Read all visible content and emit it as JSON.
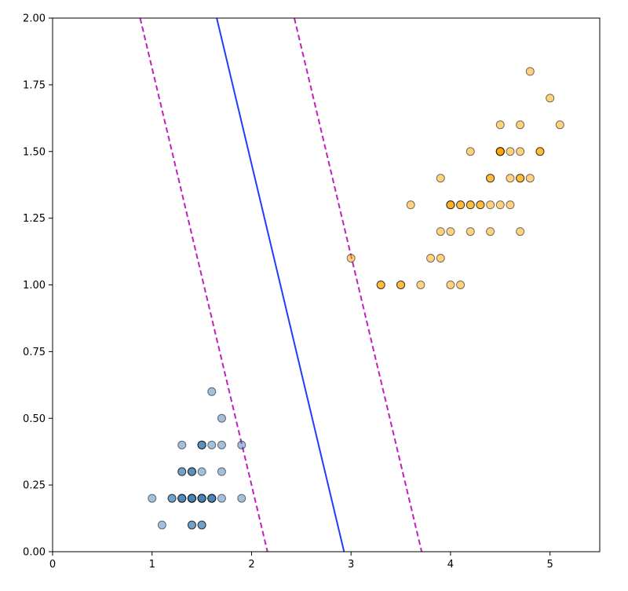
{
  "chart_data": {
    "type": "scatter",
    "title": "",
    "xlabel": "",
    "ylabel": "",
    "xlim": [
      0,
      5.5
    ],
    "ylim": [
      0,
      2.0
    ],
    "grid": false,
    "xticks": [
      "0",
      "1",
      "2",
      "3",
      "4",
      "5"
    ],
    "xtick_values": [
      0,
      1,
      2,
      3,
      4,
      5
    ],
    "yticks": [
      "0.00",
      "0.25",
      "0.50",
      "0.75",
      "1.00",
      "1.25",
      "1.50",
      "1.75",
      "2.00"
    ],
    "ytick_values": [
      0,
      0.25,
      0.5,
      0.75,
      1.0,
      1.25,
      1.5,
      1.75,
      2.0
    ],
    "series": [
      {
        "color": "#4682b4",
        "points": [
          [
            1.4,
            0.2
          ],
          [
            1.4,
            0.2
          ],
          [
            1.3,
            0.2
          ],
          [
            1.5,
            0.2
          ],
          [
            1.4,
            0.2
          ],
          [
            1.7,
            0.4
          ],
          [
            1.4,
            0.3
          ],
          [
            1.5,
            0.2
          ],
          [
            1.4,
            0.2
          ],
          [
            1.5,
            0.1
          ],
          [
            1.5,
            0.2
          ],
          [
            1.6,
            0.2
          ],
          [
            1.4,
            0.1
          ],
          [
            1.1,
            0.1
          ],
          [
            1.2,
            0.2
          ],
          [
            1.5,
            0.4
          ],
          [
            1.3,
            0.4
          ],
          [
            1.4,
            0.3
          ],
          [
            1.7,
            0.3
          ],
          [
            1.5,
            0.3
          ],
          [
            1.7,
            0.2
          ],
          [
            1.5,
            0.4
          ],
          [
            1.0,
            0.2
          ],
          [
            1.7,
            0.5
          ],
          [
            1.9,
            0.2
          ],
          [
            1.6,
            0.2
          ],
          [
            1.6,
            0.4
          ],
          [
            1.5,
            0.2
          ],
          [
            1.4,
            0.2
          ],
          [
            1.6,
            0.2
          ],
          [
            1.6,
            0.2
          ],
          [
            1.5,
            0.4
          ],
          [
            1.5,
            0.1
          ],
          [
            1.4,
            0.2
          ],
          [
            1.5,
            0.2
          ],
          [
            1.2,
            0.2
          ],
          [
            1.3,
            0.2
          ],
          [
            1.4,
            0.1
          ],
          [
            1.3,
            0.2
          ],
          [
            1.5,
            0.2
          ],
          [
            1.3,
            0.3
          ],
          [
            1.3,
            0.3
          ],
          [
            1.3,
            0.2
          ],
          [
            1.6,
            0.6
          ],
          [
            1.9,
            0.4
          ],
          [
            1.4,
            0.3
          ],
          [
            1.6,
            0.2
          ],
          [
            1.4,
            0.2
          ],
          [
            1.5,
            0.2
          ],
          [
            1.4,
            0.2
          ]
        ]
      },
      {
        "color": "#ffa500",
        "points": [
          [
            4.7,
            1.4
          ],
          [
            4.5,
            1.5
          ],
          [
            4.9,
            1.5
          ],
          [
            4.0,
            1.3
          ],
          [
            4.6,
            1.5
          ],
          [
            4.5,
            1.3
          ],
          [
            4.7,
            1.6
          ],
          [
            3.3,
            1.0
          ],
          [
            4.6,
            1.3
          ],
          [
            3.9,
            1.4
          ],
          [
            3.5,
            1.0
          ],
          [
            4.2,
            1.5
          ],
          [
            4.0,
            1.0
          ],
          [
            4.7,
            1.4
          ],
          [
            3.6,
            1.3
          ],
          [
            4.4,
            1.4
          ],
          [
            4.5,
            1.5
          ],
          [
            4.1,
            1.0
          ],
          [
            4.5,
            1.5
          ],
          [
            3.9,
            1.1
          ],
          [
            4.8,
            1.8
          ],
          [
            4.0,
            1.3
          ],
          [
            4.9,
            1.5
          ],
          [
            4.7,
            1.2
          ],
          [
            4.3,
            1.3
          ],
          [
            4.4,
            1.4
          ],
          [
            4.8,
            1.4
          ],
          [
            5.0,
            1.7
          ],
          [
            4.5,
            1.5
          ],
          [
            3.5,
            1.0
          ],
          [
            3.8,
            1.1
          ],
          [
            3.7,
            1.0
          ],
          [
            3.9,
            1.2
          ],
          [
            5.1,
            1.6
          ],
          [
            4.5,
            1.5
          ],
          [
            4.5,
            1.6
          ],
          [
            4.7,
            1.5
          ],
          [
            4.4,
            1.3
          ],
          [
            4.1,
            1.3
          ],
          [
            4.0,
            1.3
          ],
          [
            4.4,
            1.2
          ],
          [
            4.6,
            1.4
          ],
          [
            4.0,
            1.2
          ],
          [
            3.3,
            1.0
          ],
          [
            4.2,
            1.3
          ],
          [
            4.2,
            1.2
          ],
          [
            4.2,
            1.3
          ],
          [
            4.3,
            1.3
          ],
          [
            3.0,
            1.1
          ],
          [
            4.1,
            1.3
          ]
        ]
      }
    ],
    "lines": [
      {
        "role": "decision-boundary",
        "color": "#1f3cff",
        "dashed": false,
        "p1": [
          1.65,
          2.0
        ],
        "p2": [
          2.93,
          0.0
        ]
      },
      {
        "role": "margin",
        "color": "#c020c0",
        "dashed": true,
        "p1": [
          0.88,
          2.0
        ],
        "p2": [
          2.16,
          0.0
        ]
      },
      {
        "role": "margin",
        "color": "#c020c0",
        "dashed": true,
        "p1": [
          2.43,
          2.0
        ],
        "p2": [
          3.71,
          0.0
        ]
      }
    ]
  }
}
